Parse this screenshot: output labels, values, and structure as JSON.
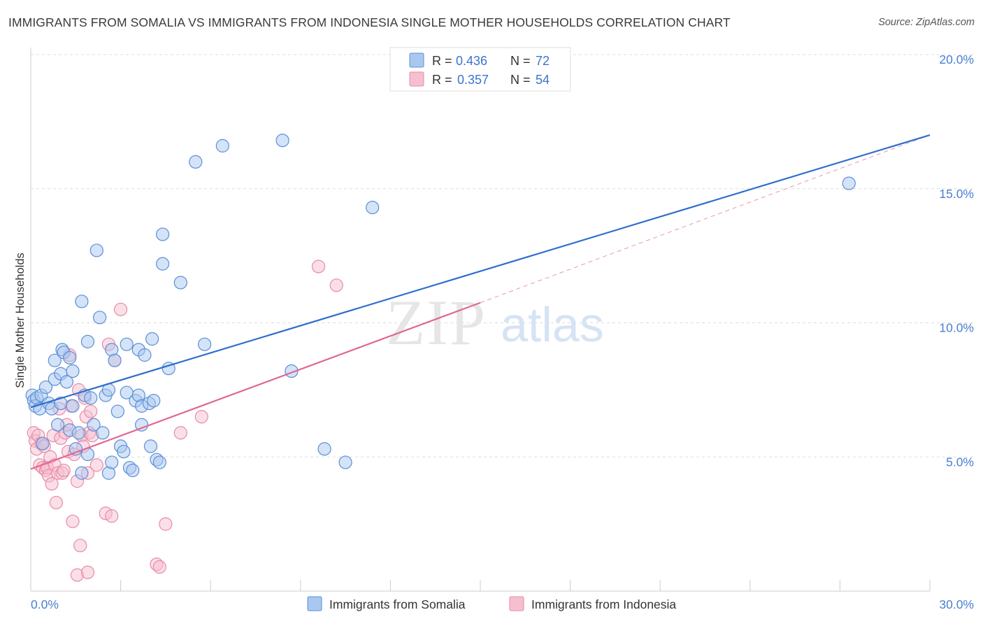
{
  "title": "IMMIGRANTS FROM SOMALIA VS IMMIGRANTS FROM INDONESIA SINGLE MOTHER HOUSEHOLDS CORRELATION CHART",
  "source": "Source: ZipAtlas.com",
  "watermark": {
    "zip": "ZIP",
    "atlas": "atlas"
  },
  "legend_top": [
    {
      "r_label": "R =",
      "r_value": "0.436",
      "n_label": "N =",
      "n_value": "72"
    },
    {
      "r_label": "R =",
      "r_value": "0.357",
      "n_label": "N =",
      "n_value": "54"
    }
  ],
  "colors": {
    "somalia_fill": "#a9c8f0",
    "somalia_stroke": "#5b8fd6",
    "somalia_line": "#2f6fcc",
    "indonesia_fill": "#f6bfd0",
    "indonesia_stroke": "#e98aa8",
    "indonesia_line": "#e06891",
    "axis_value": "#4a7fd0",
    "grid": "#dddddd"
  },
  "chart_data": {
    "type": "scatter",
    "title": "IMMIGRANTS FROM SOMALIA VS IMMIGRANTS FROM INDONESIA SINGLE MOTHER HOUSEHOLDS CORRELATION CHART",
    "xlabel": "",
    "ylabel": "Single Mother Households",
    "xlim": [
      0,
      30
    ],
    "ylim": [
      0,
      20
    ],
    "x_tick_labels": [
      "0.0%",
      "30.0%"
    ],
    "y_ticks": [
      5,
      10,
      15,
      20
    ],
    "y_tick_labels": [
      "5.0%",
      "10.0%",
      "15.0%",
      "20.0%"
    ],
    "grid": true,
    "legend_position": "bottom",
    "series": [
      {
        "name": "Immigrants from Somalia",
        "R": 0.436,
        "N": 72,
        "trend": {
          "x": [
            0,
            30
          ],
          "y": [
            6.85,
            17.0
          ]
        },
        "points": [
          [
            0.05,
            7.3
          ],
          [
            0.1,
            7.1
          ],
          [
            0.15,
            6.9
          ],
          [
            0.2,
            7.2
          ],
          [
            0.3,
            6.8
          ],
          [
            0.35,
            7.3
          ],
          [
            0.4,
            5.5
          ],
          [
            0.5,
            7.6
          ],
          [
            0.6,
            7.0
          ],
          [
            0.7,
            6.8
          ],
          [
            0.8,
            7.9
          ],
          [
            0.8,
            8.6
          ],
          [
            0.9,
            6.2
          ],
          [
            1.0,
            8.1
          ],
          [
            1.0,
            7.0
          ],
          [
            1.05,
            9.0
          ],
          [
            1.1,
            8.9
          ],
          [
            1.2,
            7.8
          ],
          [
            1.3,
            6.0
          ],
          [
            1.3,
            8.7
          ],
          [
            1.4,
            8.2
          ],
          [
            1.4,
            6.9
          ],
          [
            1.5,
            5.3
          ],
          [
            1.6,
            5.9
          ],
          [
            1.7,
            10.8
          ],
          [
            1.7,
            4.4
          ],
          [
            1.8,
            7.3
          ],
          [
            1.9,
            5.1
          ],
          [
            1.9,
            9.3
          ],
          [
            2.0,
            7.2
          ],
          [
            2.1,
            6.2
          ],
          [
            2.2,
            12.7
          ],
          [
            2.3,
            10.2
          ],
          [
            2.4,
            5.9
          ],
          [
            2.5,
            7.3
          ],
          [
            2.6,
            4.4
          ],
          [
            2.6,
            7.5
          ],
          [
            2.7,
            9.0
          ],
          [
            2.7,
            4.8
          ],
          [
            2.8,
            8.6
          ],
          [
            2.9,
            6.7
          ],
          [
            3.0,
            5.4
          ],
          [
            3.1,
            5.2
          ],
          [
            3.2,
            9.2
          ],
          [
            3.2,
            7.4
          ],
          [
            3.3,
            4.6
          ],
          [
            3.4,
            4.5
          ],
          [
            3.5,
            7.1
          ],
          [
            3.6,
            7.3
          ],
          [
            3.6,
            9.0
          ],
          [
            3.7,
            6.9
          ],
          [
            3.7,
            6.2
          ],
          [
            3.8,
            8.8
          ],
          [
            3.95,
            7.0
          ],
          [
            4.0,
            5.4
          ],
          [
            4.05,
            9.4
          ],
          [
            4.1,
            7.1
          ],
          [
            4.2,
            4.9
          ],
          [
            4.3,
            4.8
          ],
          [
            4.4,
            13.3
          ],
          [
            4.4,
            12.2
          ],
          [
            4.6,
            8.3
          ],
          [
            5.0,
            11.5
          ],
          [
            5.5,
            16.0
          ],
          [
            5.8,
            9.2
          ],
          [
            6.4,
            16.6
          ],
          [
            8.4,
            16.8
          ],
          [
            8.7,
            8.2
          ],
          [
            9.8,
            5.3
          ],
          [
            10.5,
            4.8
          ],
          [
            11.4,
            14.3
          ],
          [
            27.3,
            15.2
          ]
        ]
      },
      {
        "name": "Immigrants from Indonesia",
        "R": 0.357,
        "N": 54,
        "trend": {
          "x": [
            0,
            15
          ],
          "y": [
            4.55,
            10.75
          ]
        },
        "dashed_extension": {
          "x": [
            15,
            30
          ],
          "y": [
            10.75,
            17.0
          ]
        },
        "points": [
          [
            0.1,
            5.9
          ],
          [
            0.15,
            5.6
          ],
          [
            0.2,
            5.3
          ],
          [
            0.25,
            5.8
          ],
          [
            0.3,
            4.7
          ],
          [
            0.35,
            5.5
          ],
          [
            0.4,
            4.6
          ],
          [
            0.45,
            5.4
          ],
          [
            0.5,
            4.5
          ],
          [
            0.55,
            4.6
          ],
          [
            0.6,
            4.3
          ],
          [
            0.65,
            5.0
          ],
          [
            0.7,
            4.0
          ],
          [
            0.75,
            5.8
          ],
          [
            0.8,
            4.7
          ],
          [
            0.85,
            3.3
          ],
          [
            0.9,
            4.4
          ],
          [
            0.95,
            6.8
          ],
          [
            1.0,
            5.7
          ],
          [
            1.05,
            4.4
          ],
          [
            1.1,
            4.5
          ],
          [
            1.15,
            5.9
          ],
          [
            1.2,
            6.2
          ],
          [
            1.25,
            5.2
          ],
          [
            1.3,
            8.8
          ],
          [
            1.35,
            6.9
          ],
          [
            1.4,
            2.6
          ],
          [
            1.45,
            5.1
          ],
          [
            1.55,
            4.1
          ],
          [
            1.6,
            7.5
          ],
          [
            1.65,
            1.7
          ],
          [
            1.7,
            5.8
          ],
          [
            1.75,
            5.4
          ],
          [
            1.8,
            7.2
          ],
          [
            1.85,
            6.5
          ],
          [
            1.9,
            4.4
          ],
          [
            1.95,
            5.9
          ],
          [
            2.0,
            6.7
          ],
          [
            2.05,
            5.8
          ],
          [
            2.2,
            4.7
          ],
          [
            2.5,
            2.9
          ],
          [
            2.6,
            9.2
          ],
          [
            2.7,
            2.8
          ],
          [
            2.8,
            8.6
          ],
          [
            3.0,
            10.5
          ],
          [
            4.2,
            1.0
          ],
          [
            4.3,
            0.9
          ],
          [
            4.5,
            2.5
          ],
          [
            5.0,
            5.9
          ],
          [
            5.7,
            6.5
          ],
          [
            9.6,
            12.1
          ],
          [
            10.2,
            11.4
          ],
          [
            1.55,
            0.6
          ],
          [
            1.9,
            0.7
          ]
        ]
      }
    ]
  }
}
